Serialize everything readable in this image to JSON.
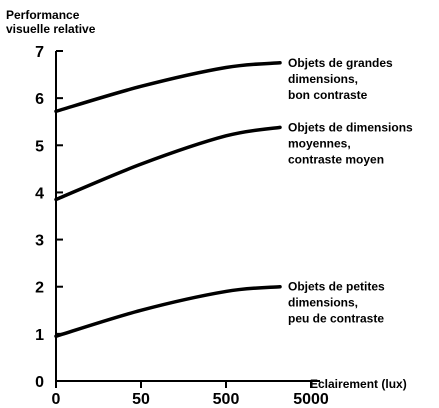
{
  "chart_data": {
    "type": "line",
    "title": "",
    "ylabel": [
      "Performance",
      "visuelle relative"
    ],
    "xlabel": "Eclairement (lux)",
    "x_ticks": [
      "0",
      "50",
      "500",
      "5000"
    ],
    "y_ticks": [
      "0",
      "1",
      "2",
      "3",
      "4",
      "5",
      "6",
      "7"
    ],
    "ylim": [
      0,
      7
    ],
    "x_scale": "categorical-log",
    "grid": false,
    "series": [
      {
        "name": "Objets de grandes dimensions, bon contraste",
        "label_lines": [
          "Objets de grandes",
          "dimensions,",
          "bon contraste"
        ],
        "x": [
          "0",
          "50",
          "500",
          "2750"
        ],
        "values": [
          5.72,
          6.25,
          6.65,
          6.75
        ]
      },
      {
        "name": "Objets de dimensions moyennes, contraste moyen",
        "label_lines": [
          "Objets de dimensions",
          "moyennes,",
          "contraste moyen"
        ],
        "x": [
          "0",
          "50",
          "500",
          "2750"
        ],
        "values": [
          3.85,
          4.6,
          5.2,
          5.38
        ]
      },
      {
        "name": "Objets de petites dimensions, peu de contraste",
        "label_lines": [
          "Objets de petites",
          "dimensions,",
          "peu de contraste"
        ],
        "x": [
          "0",
          "50",
          "500",
          "2750"
        ],
        "values": [
          0.95,
          1.5,
          1.9,
          2.0
        ]
      }
    ]
  }
}
